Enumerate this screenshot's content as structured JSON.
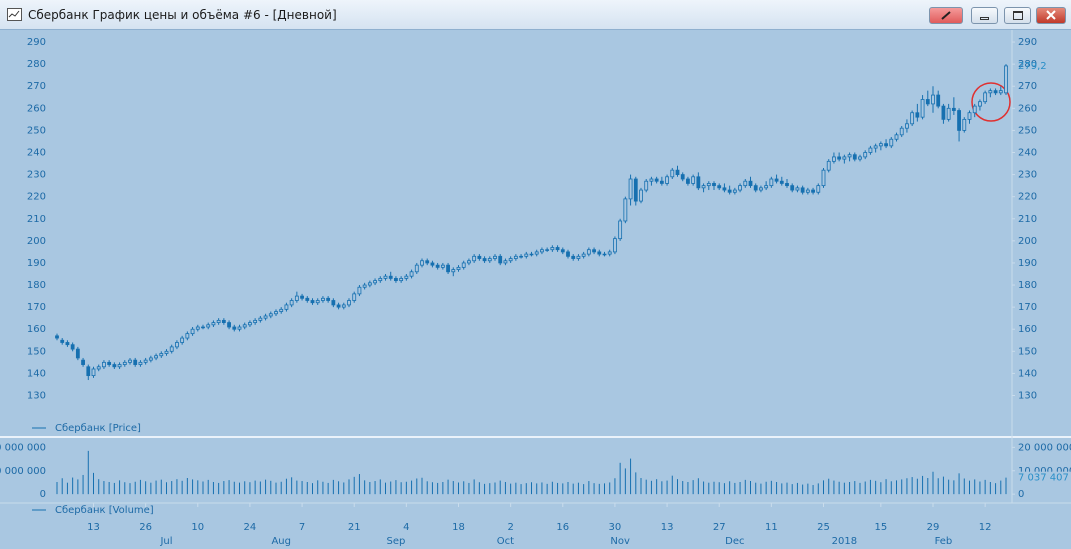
{
  "window": {
    "title": "Сбербанк График цены и объёма #6 - [Дневной]"
  },
  "chart_data": {
    "type": "candlestick",
    "price_legend": "Сбербанк [Price]",
    "volume_legend": "Сбербанк [Volume]",
    "color": "#1670b0",
    "ylim": [
      118,
      295
    ],
    "yticks": [
      130,
      140,
      150,
      160,
      170,
      180,
      190,
      200,
      210,
      220,
      230,
      240,
      250,
      260,
      270,
      280,
      290
    ],
    "last_value_label": "279,2",
    "candles": [
      [
        157,
        158,
        155,
        156
      ],
      [
        155,
        156,
        153,
        154
      ],
      [
        154,
        155,
        152,
        153
      ],
      [
        153,
        154,
        150,
        151
      ],
      [
        151,
        152,
        146,
        147
      ],
      [
        146,
        147,
        143,
        144
      ],
      [
        143,
        144,
        137,
        139
      ],
      [
        139,
        143,
        138,
        142
      ],
      [
        142,
        144,
        141,
        143
      ],
      [
        143,
        146,
        142,
        145
      ],
      [
        145,
        146,
        143,
        144
      ],
      [
        144,
        145,
        142,
        143
      ],
      [
        143,
        145,
        142,
        144
      ],
      [
        144,
        146,
        143,
        145
      ],
      [
        145,
        147,
        144,
        146
      ],
      [
        146,
        147,
        143,
        144
      ],
      [
        144,
        146,
        143,
        145
      ],
      [
        145,
        147,
        144,
        146
      ],
      [
        146,
        148,
        145,
        147
      ],
      [
        147,
        149,
        146,
        148
      ],
      [
        148,
        150,
        147,
        149
      ],
      [
        149,
        151,
        148,
        150
      ],
      [
        150,
        153,
        149,
        152
      ],
      [
        152,
        155,
        151,
        154
      ],
      [
        154,
        157,
        153,
        156
      ],
      [
        156,
        159,
        155,
        158
      ],
      [
        158,
        161,
        157,
        160
      ],
      [
        160,
        162,
        159,
        161
      ],
      [
        161,
        162,
        160,
        161
      ],
      [
        161,
        163,
        160,
        162
      ],
      [
        162,
        164,
        161,
        163
      ],
      [
        163,
        165,
        162,
        164
      ],
      [
        164,
        165,
        162,
        163
      ],
      [
        163,
        164,
        160,
        161
      ],
      [
        161,
        162,
        159,
        160
      ],
      [
        160,
        162,
        159,
        161
      ],
      [
        161,
        163,
        160,
        162
      ],
      [
        162,
        164,
        161,
        163
      ],
      [
        163,
        165,
        162,
        164
      ],
      [
        164,
        166,
        163,
        165
      ],
      [
        165,
        167,
        164,
        166
      ],
      [
        166,
        168,
        165,
        167
      ],
      [
        167,
        169,
        166,
        168
      ],
      [
        168,
        170,
        167,
        169
      ],
      [
        169,
        172,
        168,
        171
      ],
      [
        171,
        174,
        170,
        173
      ],
      [
        173,
        177,
        172,
        175
      ],
      [
        175,
        176,
        173,
        174
      ],
      [
        174,
        175,
        172,
        173
      ],
      [
        173,
        174,
        171,
        172
      ],
      [
        172,
        174,
        171,
        173
      ],
      [
        173,
        175,
        172,
        174
      ],
      [
        174,
        175,
        172,
        173
      ],
      [
        173,
        174,
        170,
        171
      ],
      [
        171,
        172,
        169,
        170
      ],
      [
        170,
        172,
        169,
        171
      ],
      [
        171,
        174,
        170,
        173
      ],
      [
        173,
        177,
        172,
        176
      ],
      [
        176,
        180,
        175,
        179
      ],
      [
        179,
        181,
        178,
        180
      ],
      [
        180,
        182,
        179,
        181
      ],
      [
        181,
        183,
        180,
        182
      ],
      [
        182,
        184,
        181,
        183
      ],
      [
        183,
        185,
        182,
        184
      ],
      [
        184,
        186,
        182,
        183
      ],
      [
        183,
        184,
        181,
        182
      ],
      [
        182,
        184,
        181,
        183
      ],
      [
        183,
        185,
        182,
        184
      ],
      [
        184,
        187,
        183,
        186
      ],
      [
        186,
        190,
        185,
        189
      ],
      [
        189,
        192,
        188,
        191
      ],
      [
        191,
        192,
        189,
        190
      ],
      [
        190,
        191,
        188,
        189
      ],
      [
        189,
        190,
        187,
        188
      ],
      [
        188,
        190,
        187,
        189
      ],
      [
        189,
        190,
        185,
        186
      ],
      [
        186,
        188,
        184,
        187
      ],
      [
        187,
        189,
        186,
        188
      ],
      [
        188,
        191,
        187,
        190
      ],
      [
        190,
        192,
        189,
        191
      ],
      [
        191,
        194,
        190,
        193
      ],
      [
        193,
        194,
        191,
        192
      ],
      [
        192,
        193,
        190,
        191
      ],
      [
        191,
        193,
        190,
        192
      ],
      [
        192,
        194,
        191,
        193
      ],
      [
        193,
        194,
        189,
        190
      ],
      [
        190,
        192,
        189,
        191
      ],
      [
        191,
        193,
        190,
        192
      ],
      [
        192,
        194,
        191,
        193
      ],
      [
        193,
        194,
        192,
        193
      ],
      [
        193,
        195,
        192,
        194
      ],
      [
        194,
        195,
        193,
        194
      ],
      [
        194,
        196,
        193,
        195
      ],
      [
        195,
        197,
        194,
        196
      ],
      [
        196,
        197,
        195,
        196
      ],
      [
        196,
        198,
        195,
        197
      ],
      [
        197,
        198,
        195,
        196
      ],
      [
        196,
        197,
        194,
        195
      ],
      [
        195,
        196,
        192,
        193
      ],
      [
        193,
        194,
        191,
        192
      ],
      [
        192,
        194,
        191,
        193
      ],
      [
        193,
        195,
        192,
        194
      ],
      [
        194,
        197,
        193,
        196
      ],
      [
        196,
        197,
        194,
        195
      ],
      [
        195,
        196,
        193,
        194
      ],
      [
        194,
        195,
        193,
        194
      ],
      [
        194,
        196,
        193,
        195
      ],
      [
        195,
        202,
        194,
        201
      ],
      [
        201,
        210,
        200,
        209
      ],
      [
        209,
        220,
        208,
        219
      ],
      [
        219,
        230,
        216,
        228
      ],
      [
        228,
        229,
        216,
        218
      ],
      [
        218,
        224,
        217,
        223
      ],
      [
        223,
        228,
        222,
        227
      ],
      [
        227,
        229,
        225,
        228
      ],
      [
        228,
        229,
        226,
        227
      ],
      [
        227,
        229,
        225,
        226
      ],
      [
        226,
        230,
        225,
        229
      ],
      [
        229,
        233,
        228,
        232
      ],
      [
        232,
        234,
        229,
        230
      ],
      [
        230,
        231,
        227,
        228
      ],
      [
        228,
        229,
        225,
        226
      ],
      [
        226,
        230,
        225,
        229
      ],
      [
        229,
        231,
        223,
        224
      ],
      [
        224,
        226,
        222,
        225
      ],
      [
        225,
        227,
        223,
        226
      ],
      [
        226,
        227,
        223,
        225
      ],
      [
        225,
        226,
        223,
        224
      ],
      [
        224,
        226,
        222,
        223
      ],
      [
        223,
        225,
        221,
        222
      ],
      [
        222,
        224,
        221,
        223
      ],
      [
        223,
        226,
        222,
        225
      ],
      [
        225,
        228,
        224,
        227
      ],
      [
        227,
        229,
        224,
        225
      ],
      [
        225,
        226,
        222,
        223
      ],
      [
        223,
        225,
        222,
        224
      ],
      [
        224,
        227,
        223,
        225
      ],
      [
        225,
        229,
        224,
        228
      ],
      [
        228,
        230,
        226,
        227
      ],
      [
        227,
        229,
        225,
        226
      ],
      [
        226,
        228,
        224,
        225
      ],
      [
        225,
        226,
        222,
        223
      ],
      [
        223,
        225,
        222,
        224
      ],
      [
        224,
        225,
        221,
        222
      ],
      [
        222,
        224,
        221,
        223
      ],
      [
        223,
        224,
        221,
        222
      ],
      [
        222,
        226,
        221,
        225
      ],
      [
        225,
        233,
        224,
        232
      ],
      [
        232,
        237,
        231,
        236
      ],
      [
        236,
        240,
        235,
        238
      ],
      [
        238,
        240,
        236,
        237
      ],
      [
        237,
        239,
        235,
        238
      ],
      [
        238,
        240,
        236,
        239
      ],
      [
        239,
        240,
        236,
        237
      ],
      [
        237,
        239,
        236,
        238
      ],
      [
        238,
        241,
        237,
        240
      ],
      [
        240,
        243,
        239,
        242
      ],
      [
        242,
        244,
        240,
        243
      ],
      [
        243,
        245,
        241,
        244
      ],
      [
        244,
        246,
        242,
        243
      ],
      [
        243,
        247,
        242,
        246
      ],
      [
        246,
        249,
        245,
        248
      ],
      [
        248,
        252,
        247,
        251
      ],
      [
        251,
        255,
        249,
        253
      ],
      [
        253,
        259,
        252,
        258
      ],
      [
        258,
        262,
        254,
        256
      ],
      [
        256,
        266,
        255,
        264
      ],
      [
        264,
        268,
        261,
        262
      ],
      [
        262,
        270,
        258,
        266
      ],
      [
        266,
        268,
        260,
        261
      ],
      [
        261,
        262,
        253,
        255
      ],
      [
        255,
        262,
        254,
        260
      ],
      [
        260,
        265,
        257,
        259
      ],
      [
        259,
        260,
        245,
        250
      ],
      [
        250,
        256,
        249,
        255
      ],
      [
        255,
        259,
        253,
        258
      ],
      [
        258,
        262,
        256,
        261
      ],
      [
        261,
        264,
        259,
        263
      ],
      [
        263,
        268,
        262,
        267
      ],
      [
        267,
        269,
        265,
        268
      ],
      [
        268,
        269,
        266,
        267
      ],
      [
        267,
        270,
        266,
        268
      ],
      [
        267,
        280,
        266,
        279.2
      ]
    ],
    "xticks": [
      {
        "value": 7,
        "label": "13"
      },
      {
        "value": 17,
        "label": "26"
      },
      {
        "value": 27,
        "label": "10"
      },
      {
        "value": 37,
        "label": "24"
      },
      {
        "value": 47,
        "label": "7"
      },
      {
        "value": 57,
        "label": "21"
      },
      {
        "value": 67,
        "label": "4"
      },
      {
        "value": 77,
        "label": "18"
      },
      {
        "value": 87,
        "label": "2"
      },
      {
        "value": 97,
        "label": "16"
      },
      {
        "value": 107,
        "label": "30"
      },
      {
        "value": 117,
        "label": "13"
      },
      {
        "value": 127,
        "label": "27"
      },
      {
        "value": 137,
        "label": "11"
      },
      {
        "value": 147,
        "label": "25"
      },
      {
        "value": 158,
        "label": "15"
      },
      {
        "value": 168,
        "label": "29"
      },
      {
        "value": 178,
        "label": "12"
      }
    ],
    "month_ticks": [
      {
        "value": 21,
        "label": "Jul"
      },
      {
        "value": 43,
        "label": "Aug"
      },
      {
        "value": 65,
        "label": "Sep"
      },
      {
        "value": 86,
        "label": "Oct"
      },
      {
        "value": 108,
        "label": "Nov"
      },
      {
        "value": 130,
        "label": "Dec"
      },
      {
        "value": 151,
        "label": "2018"
      },
      {
        "value": 170,
        "label": "Feb"
      }
    ],
    "volume": {
      "ylim": [
        -2500000,
        24000000
      ],
      "yticks": [
        {
          "value": 0,
          "label": "0"
        },
        {
          "value": 10000000,
          "label": "10 000 000"
        },
        {
          "value": 20000000,
          "label": "20 000 000"
        }
      ],
      "last_value_label": "7 037 407",
      "values": [
        5200000,
        6800000,
        4900000,
        7100000,
        6300000,
        8200000,
        18500000,
        9100000,
        6400000,
        5600000,
        5200000,
        4800000,
        5900000,
        5100000,
        4700000,
        5300000,
        6100000,
        5500000,
        4900000,
        5800000,
        6200000,
        5100000,
        5600000,
        6400000,
        5700000,
        6900000,
        6300000,
        5900000,
        5400000,
        6100000,
        5200000,
        4800000,
        5600000,
        6000000,
        5300000,
        4900000,
        5500000,
        5100000,
        5800000,
        5400000,
        6200000,
        5700000,
        4900000,
        5300000,
        6600000,
        7200000,
        5800000,
        5600000,
        5200000,
        4700000,
        5900000,
        5300000,
        4800000,
        6100000,
        5500000,
        5000000,
        6300000,
        7400000,
        8600000,
        5900000,
        5200000,
        5600000,
        6300000,
        4900000,
        5400000,
        6000000,
        5100000,
        5300000,
        5800000,
        6700000,
        7000000,
        5500000,
        5100000,
        4800000,
        5200000,
        6200000,
        5600000,
        5000000,
        5500000,
        4800000,
        6300000,
        5100000,
        4400000,
        4700000,
        5000000,
        5800000,
        5200000,
        4500000,
        4900000,
        4300000,
        4700000,
        5100000,
        4600000,
        5000000,
        4400000,
        5300000,
        4800000,
        4600000,
        5200000,
        4500000,
        4900000,
        4300000,
        5600000,
        4700000,
        4400000,
        4600000,
        5000000,
        6800000,
        13400000,
        11000000,
        15200000,
        9300000,
        6900000,
        6200000,
        5700000,
        6400000,
        5500000,
        5800000,
        7900000,
        6400000,
        5600000,
        5200000,
        6000000,
        6800000,
        5400000,
        4900000,
        5300000,
        5100000,
        4700000,
        5500000,
        4800000,
        5200000,
        6100000,
        5600000,
        4900000,
        4500000,
        5300000,
        5700000,
        5200000,
        4600000,
        4900000,
        4300000,
        4800000,
        4100000,
        4500000,
        3900000,
        4600000,
        5900000,
        6600000,
        5800000,
        5300000,
        4900000,
        5200000,
        5600000,
        4800000,
        5400000,
        6100000,
        5700000,
        5100000,
        6400000,
        5500000,
        5900000,
        6300000,
        6800000,
        7300000,
        6600000,
        7800000,
        6900000,
        9600000,
        6800000,
        7500000,
        6200000,
        5900000,
        8900000,
        6700000,
        5800000,
        6300000,
        5400000,
        6100000,
        5200000,
        4700000,
        5800000,
        7037407
      ]
    }
  }
}
